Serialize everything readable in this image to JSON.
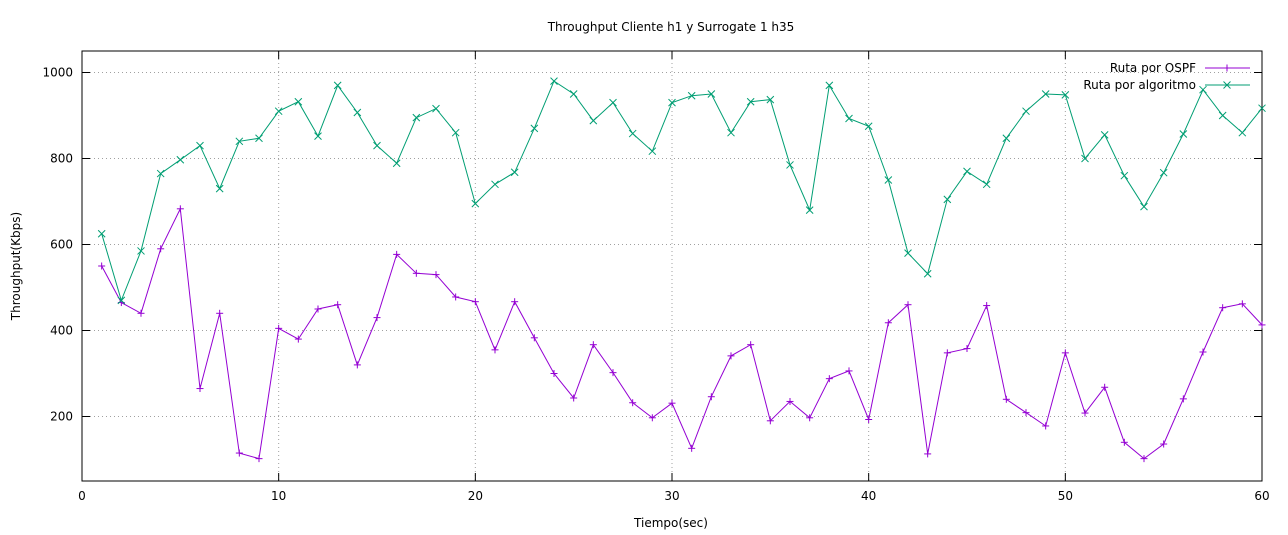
{
  "chart_data": {
    "type": "line",
    "title": "Throughput Cliente h1 y Surrogate 1 h35",
    "xlabel": "Tiempo(sec)",
    "ylabel": "Throughput(Kbps)",
    "xlim": [
      0,
      60
    ],
    "ylim": [
      50,
      1050
    ],
    "xticks": [
      0,
      10,
      20,
      30,
      40,
      50,
      60
    ],
    "yticks": [
      200,
      400,
      600,
      800,
      1000
    ],
    "grid": true,
    "legend_position": "top-right",
    "series": [
      {
        "name": "Ruta por OSPF",
        "color": "#9400d3",
        "marker": "plus",
        "x": [
          1,
          2,
          3,
          4,
          5,
          6,
          7,
          8,
          9,
          10,
          11,
          12,
          13,
          14,
          15,
          16,
          17,
          18,
          19,
          20,
          21,
          22,
          23,
          24,
          25,
          26,
          27,
          28,
          29,
          30,
          31,
          32,
          33,
          34,
          35,
          36,
          37,
          38,
          39,
          40,
          41,
          42,
          43,
          44,
          45,
          46,
          47,
          48,
          49,
          50,
          51,
          52,
          53,
          54,
          55,
          56,
          57,
          58,
          59,
          60
        ],
        "values": [
          550,
          465,
          440,
          590,
          683,
          265,
          440,
          115,
          102,
          405,
          380,
          450,
          460,
          320,
          430,
          577,
          533,
          530,
          478,
          467,
          355,
          467,
          383,
          300,
          243,
          367,
          302,
          232,
          197,
          231,
          126,
          246,
          341,
          367,
          190,
          235,
          197,
          288,
          306,
          193,
          418,
          460,
          113,
          348,
          358,
          458,
          240,
          209,
          178,
          348,
          208,
          268,
          140,
          102,
          136,
          241,
          350,
          453,
          462,
          413
        ]
      },
      {
        "name": "Ruta por algoritmo",
        "color": "#009e73",
        "marker": "x",
        "x": [
          1,
          2,
          3,
          4,
          5,
          6,
          7,
          8,
          9,
          10,
          11,
          12,
          13,
          14,
          15,
          16,
          17,
          18,
          19,
          20,
          21,
          22,
          23,
          24,
          25,
          26,
          27,
          28,
          29,
          30,
          31,
          32,
          33,
          34,
          35,
          36,
          37,
          38,
          39,
          40,
          41,
          42,
          43,
          44,
          45,
          46,
          47,
          48,
          49,
          50,
          51,
          52,
          53,
          54,
          55,
          56,
          57,
          58,
          59,
          60
        ],
        "values": [
          625,
          470,
          585,
          765,
          797,
          830,
          730,
          840,
          847,
          910,
          932,
          852,
          970,
          907,
          830,
          789,
          895,
          916,
          860,
          695,
          740,
          768,
          870,
          980,
          950,
          888,
          930,
          858,
          817,
          930,
          946,
          950,
          860,
          932,
          937,
          785,
          680,
          970,
          893,
          875,
          750,
          580,
          532,
          705,
          770,
          740,
          847,
          910,
          950,
          948,
          800,
          855,
          760,
          688,
          767,
          857,
          960,
          900,
          860,
          917
        ]
      }
    ]
  }
}
